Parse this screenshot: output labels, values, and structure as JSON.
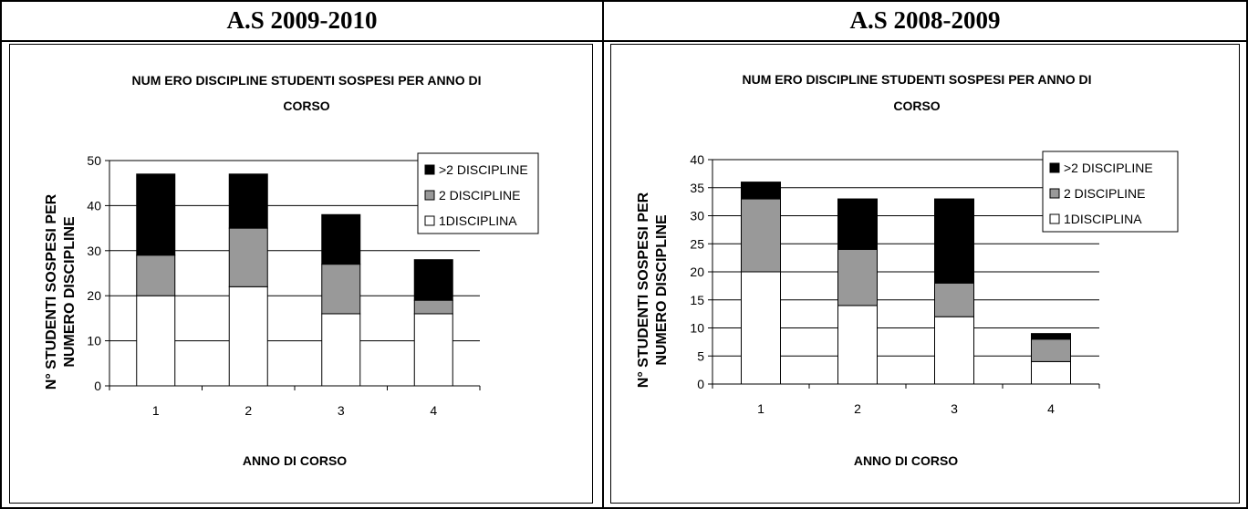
{
  "panels": [
    {
      "header": "A.S 2009-2010"
    },
    {
      "header": "A.S 2008-2009"
    }
  ],
  "colors": {
    "one_discipline": "#ffffff",
    "two_disciplines": "#999999",
    "more_than_two": "#000000",
    "chart_background": "#ffffff",
    "gridline": "#000000"
  },
  "chart_data": [
    {
      "type": "bar",
      "stacked": true,
      "title": "NUMERO DISCIPLINE STUDENTI SOSPESI PER ANNO DI CORSO",
      "title_lines": [
        "NUM ERO DISCIPLINE STUDENTI SOSPESI PER ANNO DI",
        "CORSO"
      ],
      "xlabel": "ANNO DI CORSO",
      "ylabel": "N° STUDENTI SOSPESI PER NUMERO DISCIPLINE",
      "ylabel_lines": [
        "N° STUDENTI SOSPESI PER",
        "NUMERO DISCIPLINE"
      ],
      "categories": [
        "1",
        "2",
        "3",
        "4"
      ],
      "ylim": [
        0,
        50
      ],
      "yticks": [
        "0",
        "10",
        "20",
        "30",
        "40",
        "50"
      ],
      "grid": true,
      "legend_position": "top-right",
      "series": [
        {
          "name": "1DISCIPLINA",
          "values": [
            20,
            22,
            16,
            16
          ]
        },
        {
          "name": "2 DISCIPLINE",
          "values": [
            9,
            13,
            11,
            3
          ]
        },
        {
          "name": ">2 DISCIPLINE",
          "values": [
            18,
            12,
            11,
            9
          ]
        }
      ],
      "legend_order": [
        ">2 DISCIPLINE",
        "2 DISCIPLINE",
        "1DISCIPLINA"
      ]
    },
    {
      "type": "bar",
      "stacked": true,
      "title": "NUMERO DISCIPLINE STUDENTI SOSPESI PER ANNO DI CORSO",
      "title_lines": [
        "NUM ERO DISCIPLINE STUDENTI SOSPESI PER ANNO DI",
        "CORSO"
      ],
      "xlabel": "ANNO DI CORSO",
      "ylabel": "N° STUDENTI SOSPESI PER NUMERO DISCIPLINE",
      "ylabel_lines": [
        "N° STUDENTI SOSPESI PER",
        "NUMERO DISCIPLINE"
      ],
      "categories": [
        "1",
        "2",
        "3",
        "4"
      ],
      "ylim": [
        0,
        40
      ],
      "yticks": [
        "0",
        "5",
        "10",
        "15",
        "20",
        "25",
        "30",
        "35",
        "40"
      ],
      "grid": true,
      "legend_position": "top-right",
      "series": [
        {
          "name": "1DISCIPLINA",
          "values": [
            20,
            14,
            12,
            4
          ]
        },
        {
          "name": "2 DISCIPLINE",
          "values": [
            13,
            10,
            6,
            4
          ]
        },
        {
          "name": ">2 DISCIPLINE",
          "values": [
            3,
            9,
            15,
            1
          ]
        }
      ],
      "legend_order": [
        ">2 DISCIPLINE",
        "2 DISCIPLINE",
        "1DISCIPLINA"
      ]
    }
  ]
}
